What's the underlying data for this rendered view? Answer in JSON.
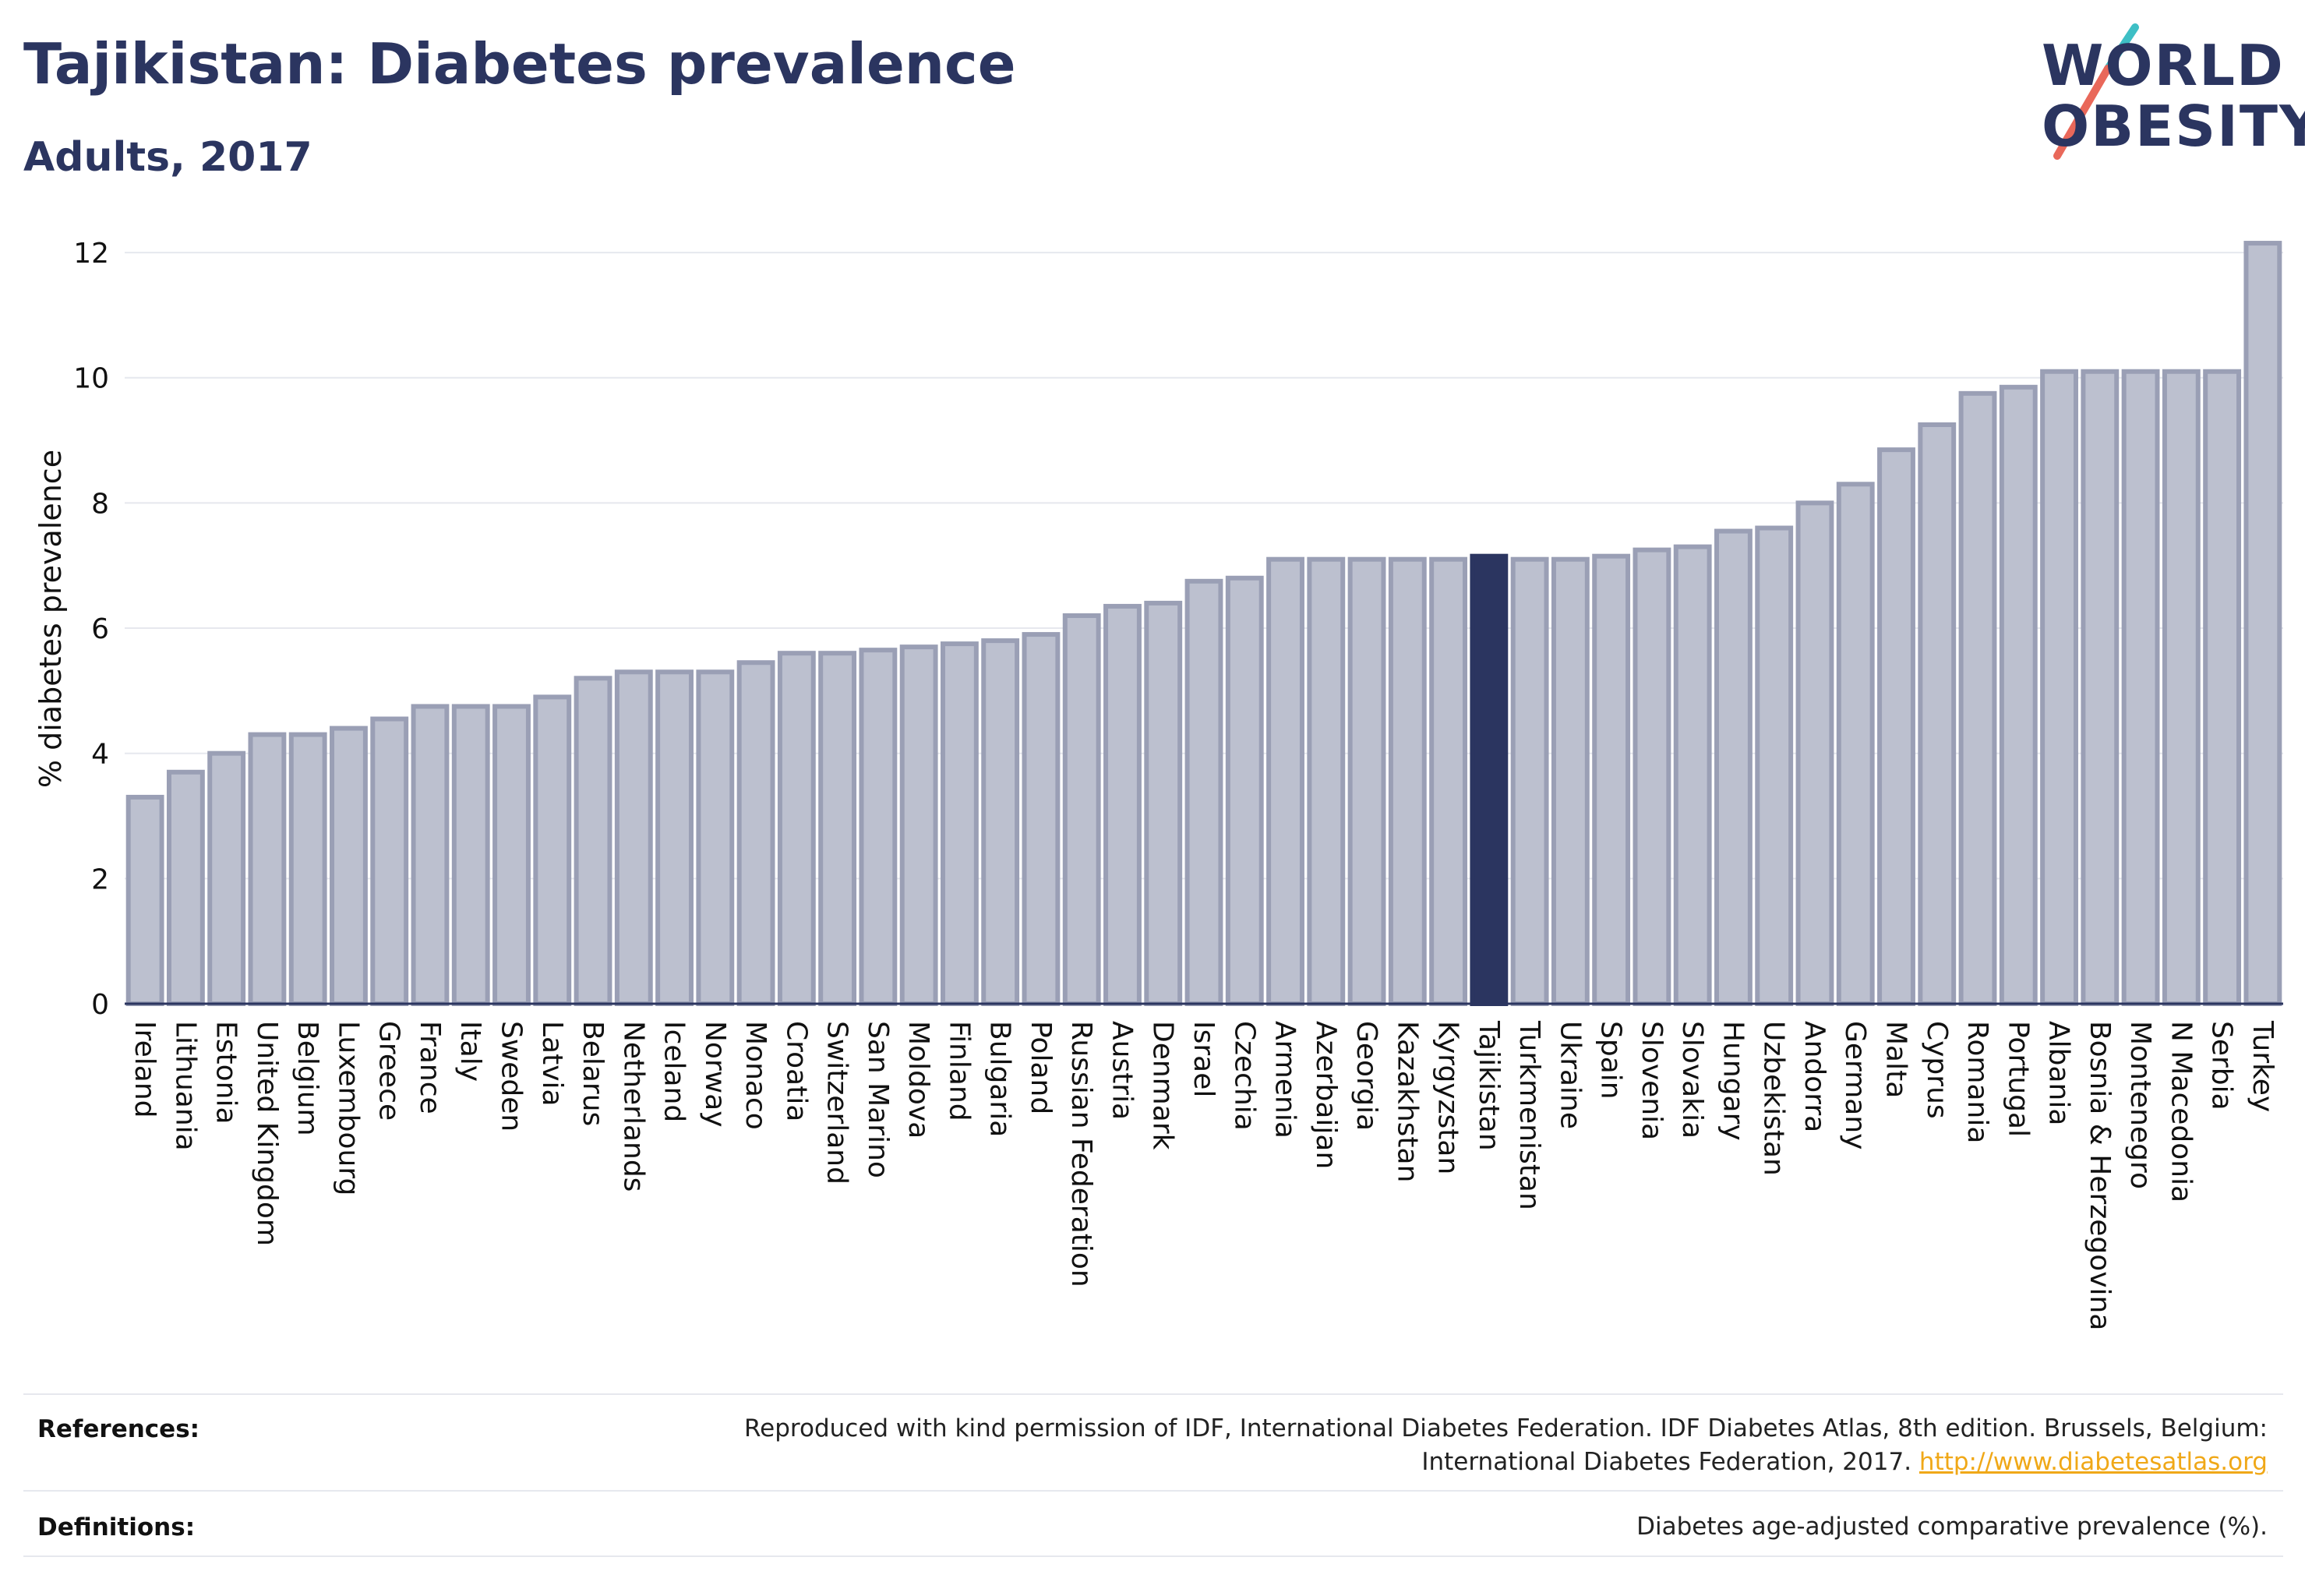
{
  "header": {
    "title": "Tajikistan: Diabetes prevalence",
    "subtitle": "Adults, 2017"
  },
  "logo": {
    "line1": "WORLD",
    "line2": "OBESITY",
    "slash_colors": [
      "#3ebfc5",
      "#e9685a"
    ]
  },
  "chart_data": {
    "type": "bar",
    "title": "Tajikistan: Diabetes prevalence",
    "subtitle": "Adults, 2017",
    "ylabel": "% diabetes prevalence",
    "xlabel": "",
    "ylim": [
      0,
      12.3
    ],
    "yticks": [
      0,
      2,
      4,
      6,
      8,
      10,
      12
    ],
    "grid": true,
    "highlight": "Tajikistan",
    "colors": {
      "bar": "#bcc0cf",
      "bar_stroke": "#9a9fb5",
      "highlight": "#2b3560"
    },
    "categories": [
      "Ireland",
      "Lithuania",
      "Estonia",
      "United Kingdom",
      "Belgium",
      "Luxembourg",
      "Greece",
      "France",
      "Italy",
      "Sweden",
      "Latvia",
      "Belarus",
      "Netherlands",
      "Iceland",
      "Norway",
      "Monaco",
      "Croatia",
      "Switzerland",
      "San Marino",
      "Moldova",
      "Finland",
      "Bulgaria",
      "Poland",
      "Russian Federation",
      "Austria",
      "Denmark",
      "Israel",
      "Czechia",
      "Armenia",
      "Azerbaijan",
      "Georgia",
      "Kazakhstan",
      "Kyrgyzstan",
      "Tajikistan",
      "Turkmenistan",
      "Ukraine",
      "Spain",
      "Slovenia",
      "Slovakia",
      "Hungary",
      "Uzbekistan",
      "Andorra",
      "Germany",
      "Malta",
      "Cyprus",
      "Romania",
      "Portugal",
      "Albania",
      "Bosnia & Herzegovina",
      "Montenegro",
      "N Macedonia",
      "Serbia",
      "Turkey"
    ],
    "values": [
      3.3,
      3.7,
      4.0,
      4.3,
      4.3,
      4.4,
      4.55,
      4.75,
      4.75,
      4.75,
      4.9,
      5.2,
      5.3,
      5.3,
      5.3,
      5.45,
      5.6,
      5.6,
      5.65,
      5.7,
      5.75,
      5.8,
      5.9,
      6.2,
      6.35,
      6.4,
      6.75,
      6.8,
      7.1,
      7.1,
      7.1,
      7.1,
      7.1,
      7.15,
      7.1,
      7.1,
      7.15,
      7.25,
      7.3,
      7.55,
      7.6,
      8.0,
      8.3,
      8.85,
      9.25,
      9.75,
      9.85,
      10.1,
      10.1,
      10.1,
      10.1,
      10.1,
      12.15
    ]
  },
  "footer": {
    "references_label": "References:",
    "references_line1": "Reproduced with kind permission of IDF, International Diabetes Federation. IDF Diabetes Atlas, 8th edition. Brussels, Belgium:",
    "references_line2": "International Diabetes Federation, 2017.",
    "references_link": "http://www.diabetesatlas.org",
    "definitions_label": "Definitions:",
    "definitions_text": "Diabetes age-adjusted comparative prevalence (%)."
  }
}
